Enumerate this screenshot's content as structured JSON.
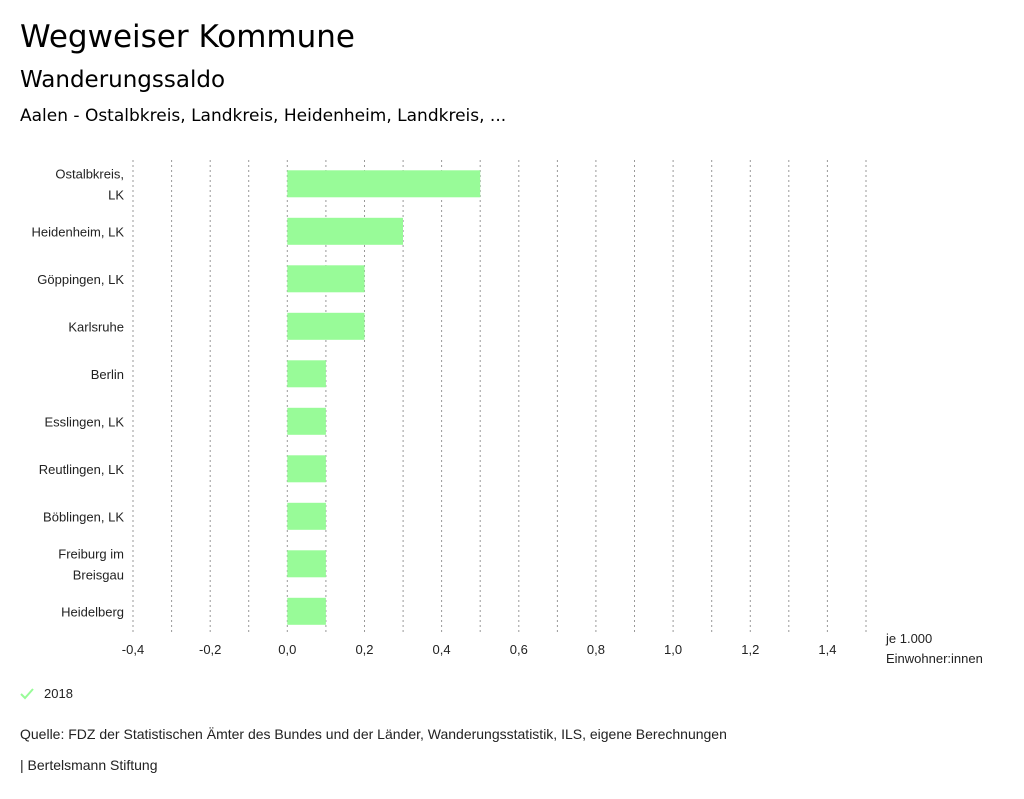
{
  "header": {
    "title": "Wegweiser Kommune",
    "subtitle": "Wanderungssaldo",
    "region": "Aalen - Ostalbkreis, Landkreis, Heidenheim, Landkreis, ..."
  },
  "colors": {
    "bar": "#98fb98",
    "grid": "#999999",
    "text": "#222222"
  },
  "chart_data": {
    "type": "bar",
    "orientation": "horizontal",
    "categories": [
      [
        "Ostalbkreis,",
        "LK"
      ],
      [
        "Heidenheim, LK"
      ],
      [
        "Göppingen, LK"
      ],
      [
        "Karlsruhe"
      ],
      [
        "Berlin"
      ],
      [
        "Esslingen, LK"
      ],
      [
        "Reutlingen, LK"
      ],
      [
        "Böblingen, LK"
      ],
      [
        "Freiburg im",
        "Breisgau"
      ],
      [
        "Heidelberg"
      ]
    ],
    "series": [
      {
        "name": "2018",
        "values": [
          0.5,
          0.3,
          0.2,
          0.2,
          0.1,
          0.1,
          0.1,
          0.1,
          0.1,
          0.1
        ]
      }
    ],
    "xlim": [
      -0.4,
      1.5
    ],
    "tick_values": [
      -0.4,
      -0.2,
      0.0,
      0.2,
      0.4,
      0.6,
      0.8,
      1.0,
      1.2,
      1.4
    ],
    "tick_labels": [
      "-0,4",
      "-0,2",
      "0,0",
      "0,2",
      "0,4",
      "0,6",
      "0,8",
      "1,0",
      "1,2",
      "1,4"
    ],
    "grid_step": 0.1,
    "unit_label": [
      "je 1.000",
      "Einwohner:innen"
    ]
  },
  "legend": {
    "label": "2018"
  },
  "footer": {
    "source": "Quelle: FDZ der Statistischen Ämter des Bundes und der Länder, Wanderungsstatistik, ILS, eigene Berechnungen",
    "brand": "| Bertelsmann Stiftung"
  }
}
